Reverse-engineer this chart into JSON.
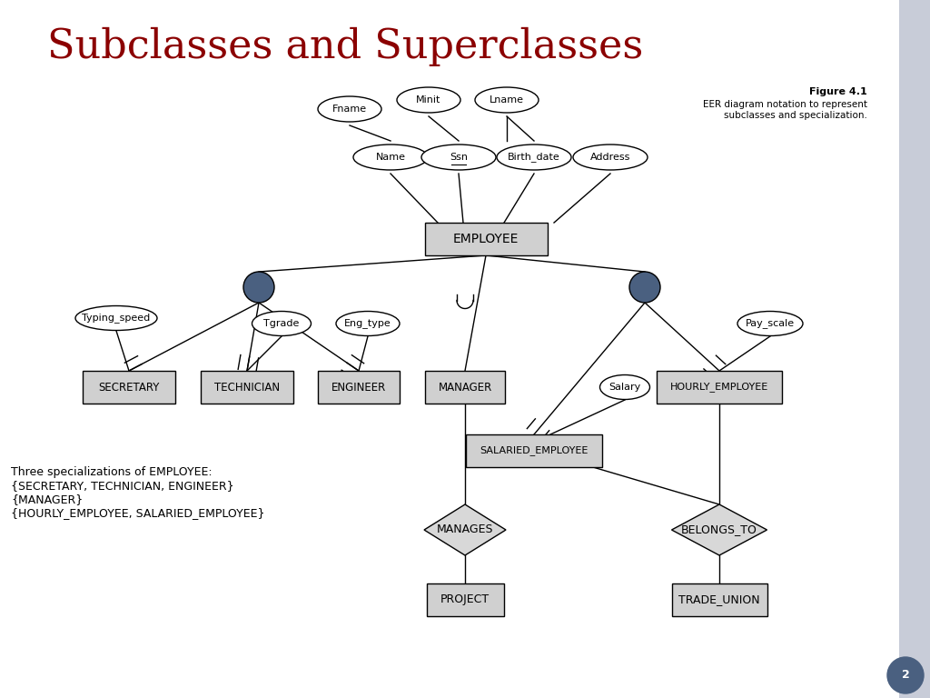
{
  "title": "Subclasses and Superclasses",
  "title_color": "#8B0000",
  "title_fontsize": 32,
  "figure_caption_bold": "Figure 4.1",
  "figure_caption": "EER diagram notation to represent\nsubclasses and specialization.",
  "background_color": "#ffffff",
  "entity_box_color": "#d0d0d0",
  "circle_fill": "#4a6080",
  "diamond_fill": "#d8d8d8",
  "annotation_text": "Three specializations of EMPLOYEE:\n{SECRETARY, TECHNICIAN, ENGINEER}\n{MANAGER}\n{HOURLY_EMPLOYEE, SALARIED_EMPLOYEE}",
  "annotation_fontsize": 9,
  "sidebar_color": "#c8ccd8",
  "page_circle_color": "#4a6080"
}
